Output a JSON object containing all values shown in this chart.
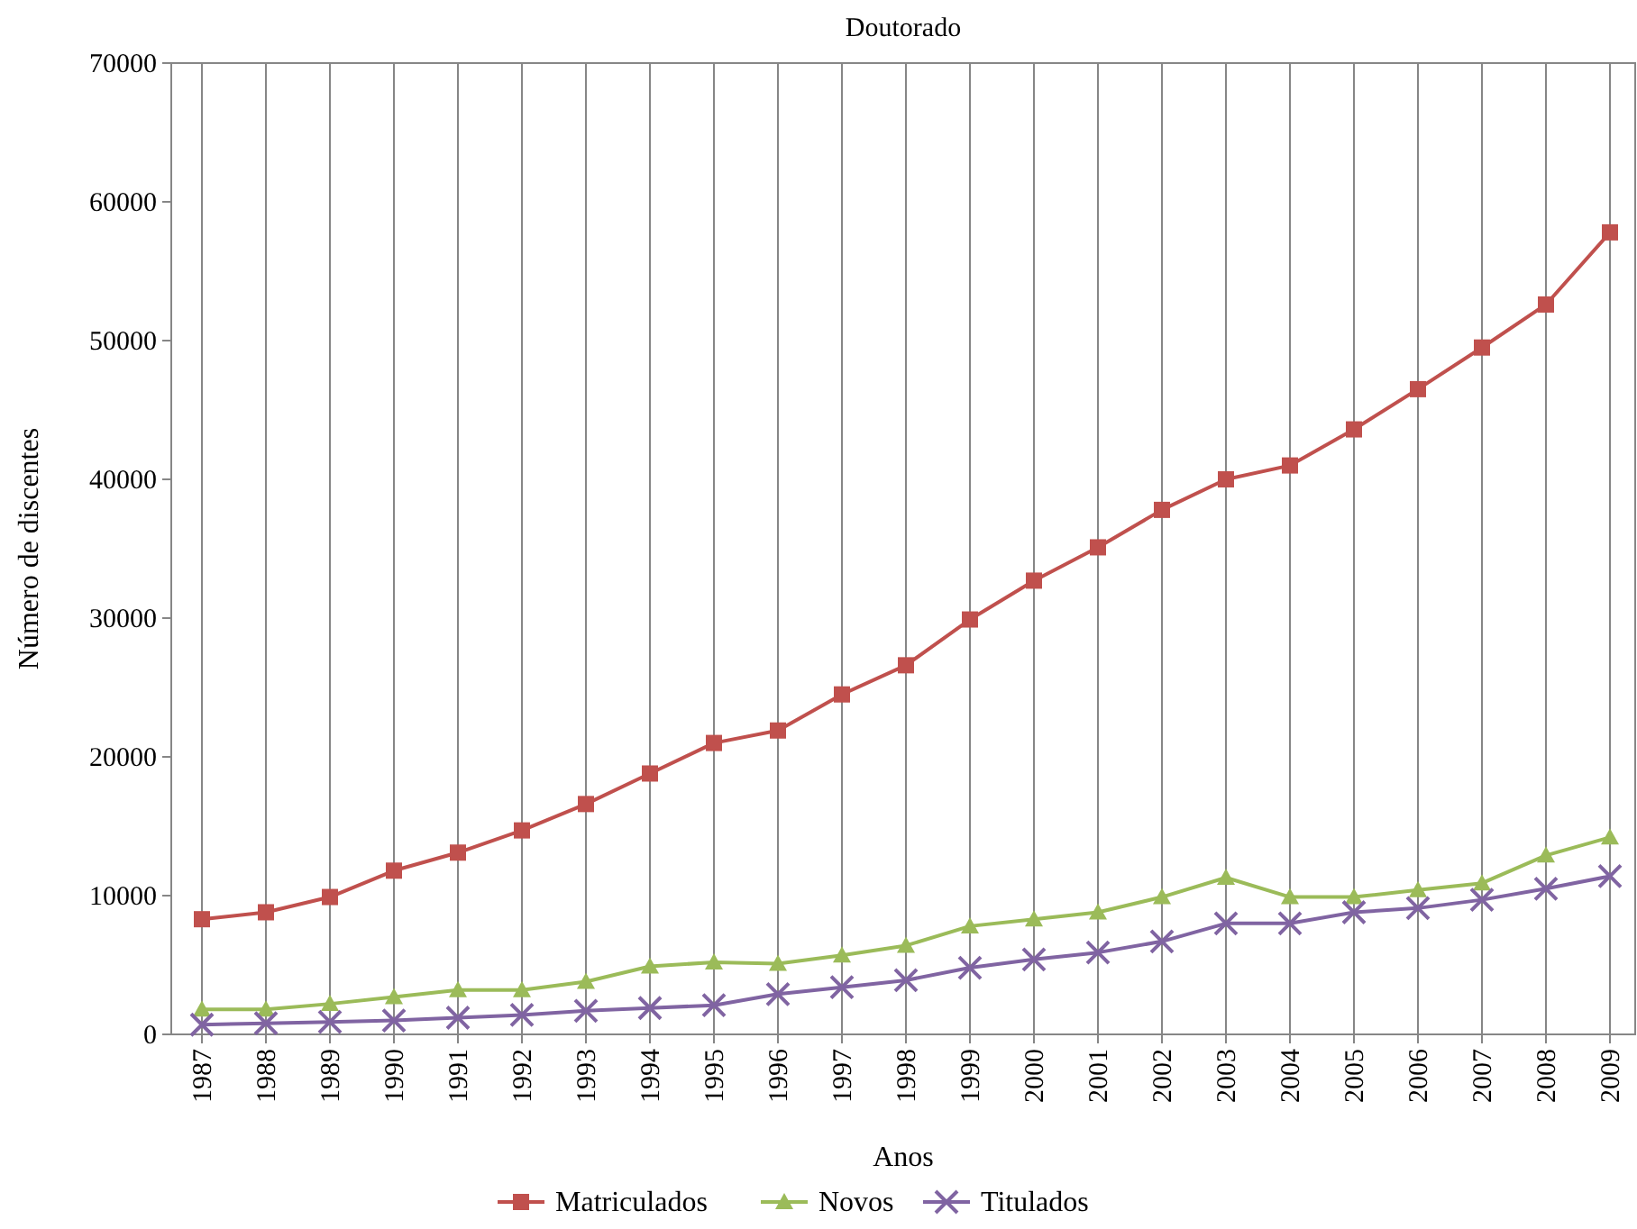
{
  "chart_data": {
    "type": "line",
    "title": "Doutorado",
    "xlabel": "Anos",
    "ylabel": "Número de discentes",
    "categories": [
      "1987",
      "1988",
      "1989",
      "1990",
      "1991",
      "1992",
      "1993",
      "1994",
      "1995",
      "1996",
      "1997",
      "1998",
      "1999",
      "2000",
      "2001",
      "2002",
      "2003",
      "2004",
      "2005",
      "2006",
      "2007",
      "2008",
      "2009"
    ],
    "ylim": [
      0,
      70000
    ],
    "yticks": [
      0,
      10000,
      20000,
      30000,
      40000,
      50000,
      60000,
      70000
    ],
    "grid": "x",
    "legend": "bottom",
    "series": [
      {
        "name": "Matriculados",
        "color": "#c0504d",
        "marker": "square",
        "values": [
          8300,
          8800,
          9900,
          11800,
          13100,
          14700,
          16600,
          18800,
          21000,
          21900,
          24500,
          26600,
          29900,
          32700,
          35100,
          37800,
          40000,
          41000,
          43600,
          46500,
          49500,
          52600,
          57800
        ]
      },
      {
        "name": "Novos",
        "color": "#9bbb59",
        "marker": "triangle",
        "values": [
          1800,
          1800,
          2200,
          2700,
          3200,
          3200,
          3800,
          4900,
          5200,
          5100,
          5700,
          6400,
          7800,
          8300,
          8800,
          9900,
          11300,
          9900,
          9900,
          10400,
          10900,
          12900,
          14200
        ]
      },
      {
        "name": "Titulados",
        "color": "#8064a2",
        "marker": "cross",
        "values": [
          700,
          800,
          900,
          1000,
          1200,
          1400,
          1700,
          1900,
          2100,
          2900,
          3400,
          3900,
          4800,
          5400,
          5900,
          6700,
          8000,
          8000,
          8800,
          9100,
          9700,
          10500,
          11400
        ]
      }
    ]
  }
}
